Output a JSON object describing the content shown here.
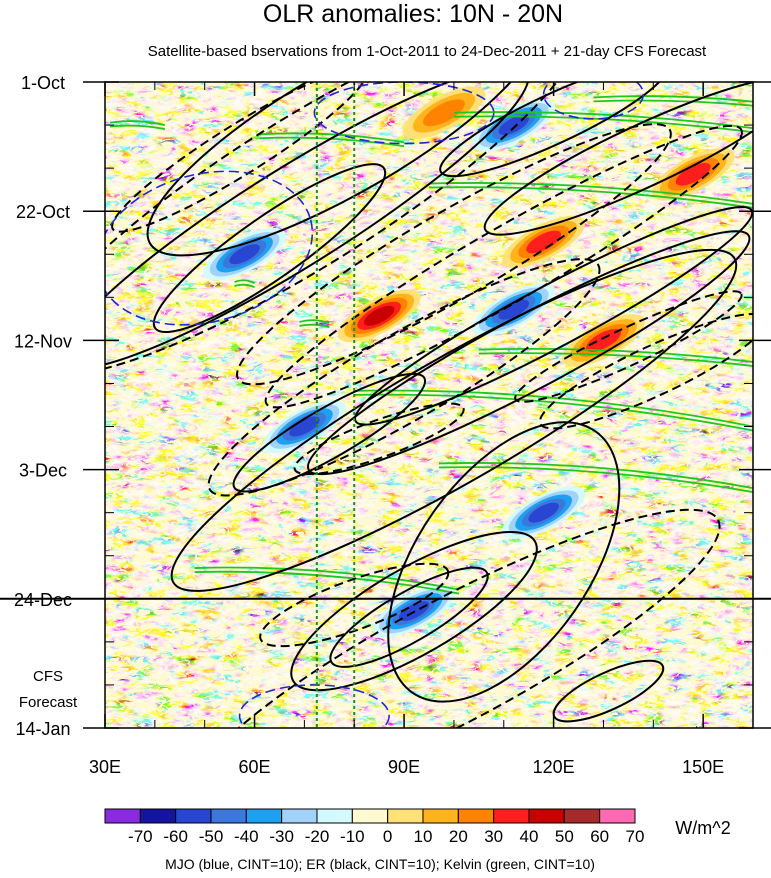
{
  "chart_data": {
    "type": "heatmap",
    "title": "OLR anomalies: 10N - 20N",
    "subtitle": "Satellite-based bservations from 1-Oct-2011 to 24-Dec-2011 + 21-day CFS Forecast",
    "x_ticks": [
      {
        "value": 30,
        "label": "30E"
      },
      {
        "value": 60,
        "label": "60E"
      },
      {
        "value": 90,
        "label": "90E"
      },
      {
        "value": 120,
        "label": "120E"
      },
      {
        "value": 150,
        "label": "150E"
      }
    ],
    "x_range": [
      30,
      160
    ],
    "y_ticks": [
      {
        "value": 0,
        "label": "1-Oct"
      },
      {
        "value": 21,
        "label": "22-Oct"
      },
      {
        "value": 42,
        "label": "12-Nov"
      },
      {
        "value": 63,
        "label": "3-Dec"
      },
      {
        "value": 84,
        "label": "24-Dec"
      },
      {
        "value": 105,
        "label": "14-Jan"
      }
    ],
    "y_range_days": [
      0,
      105
    ],
    "forecast_start_day": 84,
    "forecast_label": [
      "CFS",
      "Forecast"
    ],
    "reference_lines_lon": [
      72.5,
      80
    ],
    "colorbar": {
      "levels": [
        -70,
        -60,
        -50,
        -40,
        -30,
        -20,
        -10,
        0,
        10,
        20,
        30,
        40,
        50,
        60,
        70
      ],
      "labels": [
        "-70",
        "-60",
        "-50",
        "-40",
        "-30",
        "-20",
        "-10",
        "0",
        "10",
        "20",
        "30",
        "40",
        "50",
        "60",
        "70"
      ],
      "colors": [
        "#8a2be2",
        "#1414a0",
        "#2846d2",
        "#3c78dc",
        "#1ea0f0",
        "#a0d2fa",
        "#d2faff",
        "#fffad2",
        "#ffe178",
        "#ffb41e",
        "#ff8200",
        "#ff1e1e",
        "#c80000",
        "#a52a2a",
        "#ff69b4"
      ],
      "units": "W/m^2"
    },
    "anomaly_features": [
      {
        "lon": 58,
        "day": 28,
        "value": -70
      },
      {
        "lon": 70,
        "day": 56,
        "value": -65
      },
      {
        "lon": 92,
        "day": 86,
        "value": -70
      },
      {
        "lon": 112,
        "day": 37,
        "value": -60
      },
      {
        "lon": 112,
        "day": 7,
        "value": -50
      },
      {
        "lon": 118,
        "day": 70,
        "value": -45
      },
      {
        "lon": 85,
        "day": 38,
        "value": 45
      },
      {
        "lon": 98,
        "day": 5,
        "value": 30
      },
      {
        "lon": 118,
        "day": 26,
        "value": 40
      },
      {
        "lon": 148,
        "day": 15,
        "value": 35
      },
      {
        "lon": 130,
        "day": 42,
        "value": 40
      }
    ],
    "overlays": {
      "legend_text": "MJO (blue, CINT=10); ER (black, CINT=10); Kelvin (green, CINT=10)",
      "mjo_color": "#1e28d2",
      "er_color": "#000000",
      "kelvin_color": "#1ec81e",
      "er_contours": [
        {
          "lon": 63,
          "day": 27,
          "rlon": 28,
          "rday": 5,
          "angle": -35,
          "dashed": false
        },
        {
          "lon": 68,
          "day": 22,
          "rlon": 55,
          "rday": 8,
          "angle": -32,
          "dashed": false
        },
        {
          "lon": 70,
          "day": 18,
          "rlon": 65,
          "rday": 12,
          "angle": -32,
          "dashed": true
        },
        {
          "lon": 57,
          "day": 11,
          "rlon": 30,
          "rday": 4,
          "angle": -32,
          "dashed": true
        },
        {
          "lon": 100,
          "day": 28,
          "rlon": 50,
          "rday": 7,
          "angle": -30,
          "dashed": true
        },
        {
          "lon": 110,
          "day": 30,
          "rlon": 55,
          "rday": 6,
          "angle": -30,
          "dashed": true
        },
        {
          "lon": 120,
          "day": 38,
          "rlon": 45,
          "rday": 5,
          "angle": -28,
          "dashed": false
        },
        {
          "lon": 115,
          "day": 44,
          "rlon": 50,
          "rday": 6,
          "angle": -28,
          "dashed": false
        },
        {
          "lon": 135,
          "day": 43,
          "rlon": 25,
          "rday": 3,
          "angle": -25,
          "dashed": true
        },
        {
          "lon": 90,
          "day": 48,
          "rlon": 45,
          "rday": 7,
          "angle": -30,
          "dashed": true
        },
        {
          "lon": 100,
          "day": 55,
          "rlon": 65,
          "rday": 10,
          "angle": -30,
          "dashed": false
        },
        {
          "lon": 75,
          "day": 57,
          "rlon": 22,
          "rday": 4,
          "angle": -30,
          "dashed": false
        },
        {
          "lon": 85,
          "day": 58,
          "rlon": 18,
          "rday": 3,
          "angle": -20,
          "dashed": true
        },
        {
          "lon": 140,
          "day": 47,
          "rlon": 25,
          "rday": 4,
          "angle": -25,
          "dashed": true
        },
        {
          "lon": 110,
          "day": 78,
          "rlon": 32,
          "rday": 14,
          "angle": -55,
          "dashed": false
        },
        {
          "lon": 91,
          "day": 87,
          "rlon": 18,
          "rday": 4,
          "angle": -30,
          "dashed": false
        },
        {
          "lon": 92,
          "day": 86,
          "rlon": 28,
          "rday": 7,
          "angle": -30,
          "dashed": false
        },
        {
          "lon": 80,
          "day": 85,
          "rlon": 20,
          "rday": 4,
          "angle": -20,
          "dashed": true
        },
        {
          "lon": 100,
          "day": 94,
          "rlon": 60,
          "rday": 10,
          "angle": -28,
          "dashed": true
        },
        {
          "lon": 131,
          "day": 99,
          "rlon": 12,
          "rday": 3,
          "angle": -25,
          "dashed": false
        },
        {
          "lon": 78,
          "day": 8,
          "rlon": 45,
          "rday": 10,
          "angle": -30,
          "dashed": false
        },
        {
          "lon": 120,
          "day": 6,
          "rlon": 25,
          "rday": 4,
          "angle": -25,
          "dashed": false
        },
        {
          "lon": 138,
          "day": 12,
          "rlon": 35,
          "rday": 5,
          "angle": -25,
          "dashed": false
        }
      ],
      "mjo_contours": [
        {
          "lon": 50,
          "day": 27,
          "rlon": 22,
          "rday": 12,
          "angle": -15
        },
        {
          "lon": 90,
          "day": 5,
          "rlon": 18,
          "rday": 5,
          "angle": 0
        },
        {
          "lon": 72,
          "day": 103,
          "rlon": 15,
          "rday": 5,
          "angle": 0
        },
        {
          "lon": 128,
          "day": 2,
          "rlon": 10,
          "rday": 4,
          "angle": 0
        }
      ],
      "kelvin_contours": [
        {
          "lon": [
            31,
            42
          ],
          "day": [
            6.6,
            7.0
          ]
        },
        {
          "lon": [
            61,
            90
          ],
          "day": [
            8.5,
            9.8
          ]
        },
        {
          "lon": [
            100,
            160
          ],
          "day": [
            5.0,
            7.5
          ]
        },
        {
          "lon": [
            95,
            160
          ],
          "day": [
            16.5,
            19.8
          ]
        },
        {
          "lon": [
            128,
            160
          ],
          "day": [
            2.5,
            3.2
          ]
        },
        {
          "lon": [
            105,
            160
          ],
          "day": [
            43.5,
            45.5
          ]
        },
        {
          "lon": [
            80,
            160
          ],
          "day": [
            50.2,
            56.0
          ]
        },
        {
          "lon": [
            97,
            160
          ],
          "day": [
            62.0,
            66.0
          ]
        },
        {
          "lon": [
            48,
            101
          ],
          "day": [
            79.0,
            82.5
          ]
        },
        {
          "lon": [
            69,
            75
          ],
          "day": [
            39.0,
            39.2
          ]
        },
        {
          "lon": [
            56,
            60
          ],
          "day": [
            32.5,
            32.7
          ]
        }
      ]
    }
  }
}
